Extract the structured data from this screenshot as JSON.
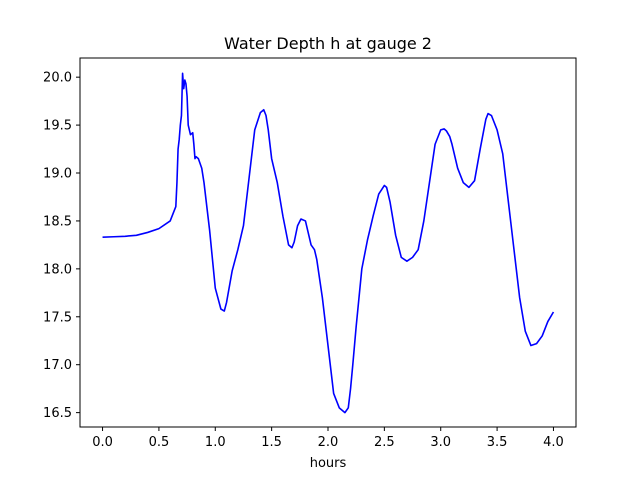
{
  "chart_data": {
    "type": "line",
    "title": "Water Depth h at gauge 2",
    "xlabel": "hours",
    "ylabel": "",
    "xlim": [
      -0.2,
      4.2
    ],
    "ylim": [
      16.35,
      20.2
    ],
    "xticks": [
      0.0,
      0.5,
      1.0,
      1.5,
      2.0,
      2.5,
      3.0,
      3.5,
      4.0
    ],
    "xtick_labels": [
      "0.0",
      "0.5",
      "1.0",
      "1.5",
      "2.0",
      "2.5",
      "3.0",
      "3.5",
      "4.0"
    ],
    "yticks": [
      16.5,
      17.0,
      17.5,
      18.0,
      18.5,
      19.0,
      19.5,
      20.0
    ],
    "ytick_labels": [
      "16.5",
      "17.0",
      "17.5",
      "18.0",
      "18.5",
      "19.0",
      "19.5",
      "20.0"
    ],
    "grid": false,
    "series": [
      {
        "color": "#0000ff",
        "x": [
          0.0,
          0.1,
          0.2,
          0.3,
          0.4,
          0.5,
          0.6,
          0.65,
          0.66,
          0.67,
          0.68,
          0.69,
          0.7,
          0.71,
          0.72,
          0.73,
          0.74,
          0.75,
          0.76,
          0.78,
          0.8,
          0.81,
          0.82,
          0.83,
          0.85,
          0.88,
          0.9,
          0.93,
          0.95,
          1.0,
          1.05,
          1.08,
          1.1,
          1.15,
          1.2,
          1.25,
          1.3,
          1.35,
          1.4,
          1.43,
          1.45,
          1.47,
          1.5,
          1.55,
          1.6,
          1.65,
          1.68,
          1.7,
          1.73,
          1.76,
          1.8,
          1.82,
          1.85,
          1.88,
          1.9,
          1.95,
          2.0,
          2.05,
          2.1,
          2.15,
          2.18,
          2.2,
          2.22,
          2.25,
          2.3,
          2.35,
          2.37,
          2.4,
          2.45,
          2.5,
          2.52,
          2.55,
          2.6,
          2.65,
          2.7,
          2.75,
          2.8,
          2.85,
          2.9,
          2.95,
          3.0,
          3.03,
          3.05,
          3.08,
          3.1,
          3.15,
          3.2,
          3.25,
          3.3,
          3.35,
          3.4,
          3.42,
          3.45,
          3.5,
          3.55,
          3.6,
          3.65,
          3.7,
          3.75,
          3.8,
          3.85,
          3.9,
          3.95,
          4.0
        ],
        "y": [
          18.33,
          18.335,
          18.34,
          18.35,
          18.38,
          18.42,
          18.5,
          18.65,
          18.9,
          19.25,
          19.35,
          19.5,
          19.6,
          20.04,
          19.88,
          19.97,
          19.93,
          19.8,
          19.5,
          19.4,
          19.42,
          19.3,
          19.15,
          19.17,
          19.15,
          19.05,
          18.9,
          18.6,
          18.4,
          17.8,
          17.58,
          17.56,
          17.65,
          17.98,
          18.2,
          18.45,
          18.95,
          19.45,
          19.63,
          19.66,
          19.6,
          19.45,
          19.15,
          18.9,
          18.55,
          18.25,
          18.22,
          18.28,
          18.45,
          18.52,
          18.5,
          18.4,
          18.25,
          18.2,
          18.1,
          17.7,
          17.2,
          16.7,
          16.55,
          16.5,
          16.55,
          16.75,
          17.0,
          17.4,
          18.0,
          18.3,
          18.4,
          18.55,
          18.78,
          18.87,
          18.85,
          18.7,
          18.35,
          18.12,
          18.08,
          18.12,
          18.2,
          18.5,
          18.9,
          19.3,
          19.45,
          19.46,
          19.44,
          19.38,
          19.3,
          19.05,
          18.9,
          18.85,
          18.92,
          19.25,
          19.56,
          19.62,
          19.6,
          19.45,
          19.2,
          18.7,
          18.2,
          17.7,
          17.35,
          17.2,
          17.22,
          17.3,
          17.45,
          17.55
        ]
      }
    ]
  }
}
